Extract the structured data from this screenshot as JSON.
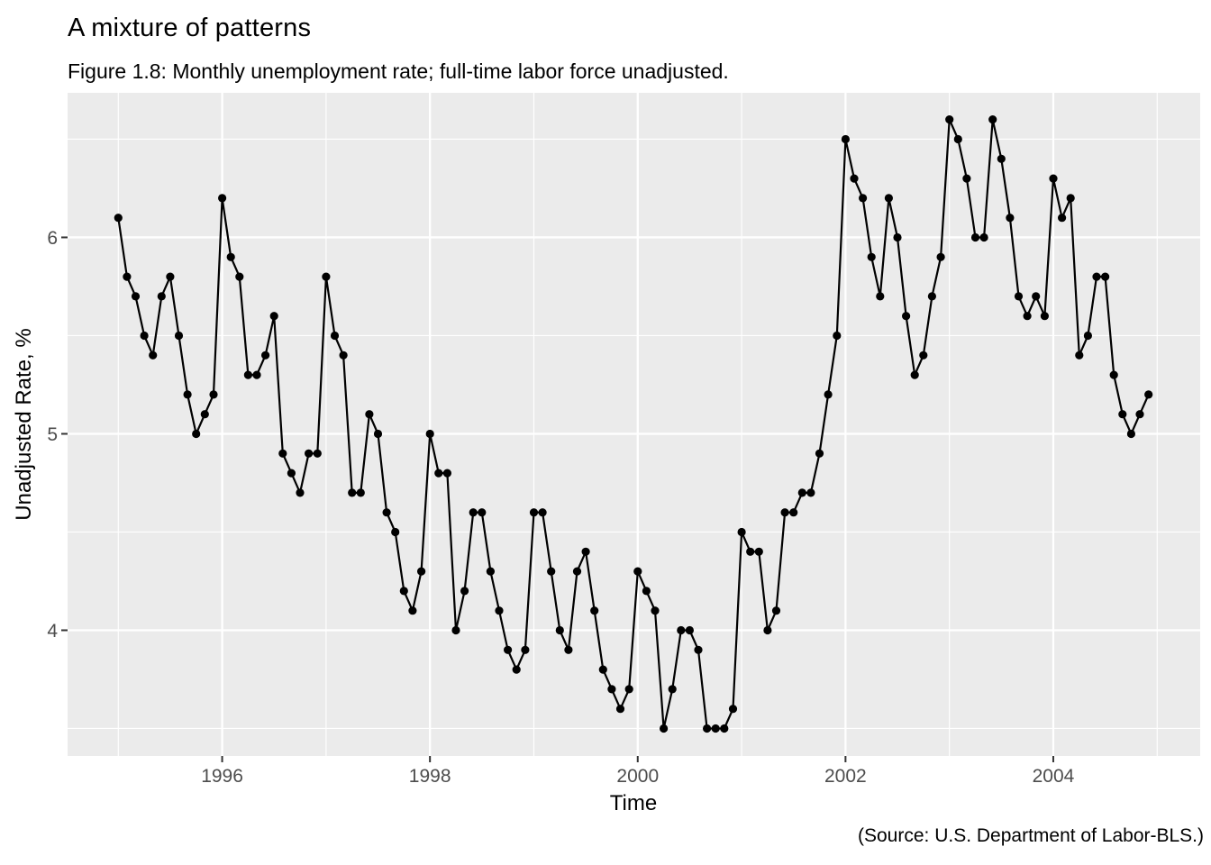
{
  "chart_data": {
    "type": "line",
    "title": "A mixture of patterns",
    "subtitle": "Figure 1.8: Monthly unemployment rate; full-time labor force unadjusted.",
    "caption": "(Source: U.S. Department of Labor-BLS.)",
    "axes": {
      "xlabel": "Time",
      "ylabel": "Unadjusted Rate, %",
      "x_tick_values": [
        1996,
        1998,
        2000,
        2002,
        2004
      ],
      "x_tick_labels": [
        "1996",
        "1998",
        "2000",
        "2002",
        "2004"
      ],
      "y_tick_values": [
        4,
        5,
        6
      ],
      "y_tick_labels": [
        "4",
        "5",
        "6"
      ],
      "x_minor_ticks": [
        1995,
        1997,
        1999,
        2001,
        2003,
        2005
      ],
      "y_minor_ticks": [
        3.5,
        4.5,
        5.5,
        6.5
      ],
      "xlim": [
        1994.512,
        2005.414
      ],
      "ylim": [
        3.36,
        6.736
      ],
      "grid": "white major and minor gridlines on gray panel"
    },
    "series": [
      {
        "name": "Monthly unemployment rate, full-time labor force, unadjusted",
        "frequency": "monthly",
        "start_year": 1995,
        "start_month": 1,
        "values": [
          6.1,
          5.8,
          5.7,
          5.5,
          5.4,
          5.7,
          5.8,
          5.5,
          5.2,
          5.0,
          5.1,
          5.2,
          6.2,
          5.9,
          5.8,
          5.3,
          5.3,
          5.4,
          5.6,
          4.9,
          4.8,
          4.7,
          4.9,
          4.9,
          5.8,
          5.5,
          5.4,
          4.7,
          4.7,
          5.1,
          5.0,
          4.6,
          4.5,
          4.2,
          4.1,
          4.3,
          5.0,
          4.8,
          4.8,
          4.0,
          4.2,
          4.6,
          4.6,
          4.3,
          4.1,
          3.9,
          3.8,
          3.9,
          4.6,
          4.6,
          4.3,
          4.0,
          3.9,
          4.3,
          4.4,
          4.1,
          3.8,
          3.7,
          3.6,
          3.7,
          4.3,
          4.2,
          4.1,
          3.5,
          3.7,
          4.0,
          4.0,
          3.9,
          3.5,
          3.5,
          3.5,
          3.6,
          4.5,
          4.4,
          4.4,
          4.0,
          4.1,
          4.6,
          4.6,
          4.7,
          4.7,
          4.9,
          5.2,
          5.5,
          6.5,
          6.3,
          6.2,
          5.9,
          5.7,
          6.2,
          6.0,
          5.6,
          5.3,
          5.4,
          5.7,
          5.9,
          6.6,
          6.5,
          6.3,
          6.0,
          6.0,
          6.6,
          6.4,
          6.1,
          5.7,
          5.6,
          5.7,
          5.6,
          6.3,
          6.1,
          6.2,
          5.4,
          5.5,
          5.8,
          5.8,
          5.3,
          5.1,
          5.0,
          5.1,
          5.2
        ]
      }
    ],
    "style": {
      "panel_background": "#EBEBEB",
      "grid_color": "#FFFFFF",
      "line_color": "#000000",
      "point_color": "#000000",
      "tick_label_color": "#4D4D4D",
      "tick_mark_color": "#333333",
      "text_color": "#000000"
    },
    "legend": "none"
  }
}
